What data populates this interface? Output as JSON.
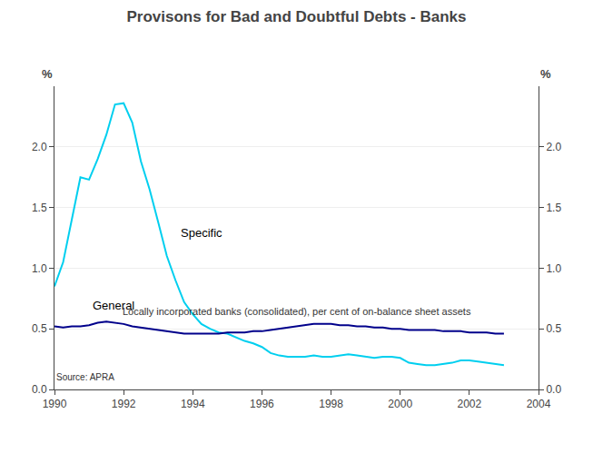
{
  "chart_data": {
    "type": "line",
    "title": "Provisons for Bad and Doubtful Debts - Banks",
    "subtitle": "Locally incorporated banks (consolidated), per cent of on-balance sheet assets",
    "source": "Source: APRA",
    "ylabel": "%",
    "y2label": "%",
    "xlim": [
      1990,
      2004
    ],
    "xticks": [
      1990,
      1992,
      1994,
      1996,
      1998,
      2000,
      2002,
      2004
    ],
    "ylim": [
      0.0,
      2.5
    ],
    "yticks": [
      {
        "value": 0.0,
        "label": "0.0"
      },
      0.5,
      {
        "value": 1.0,
        "label": "1.0"
      },
      1.5,
      {
        "value": 2.0,
        "label": "2.0"
      }
    ],
    "y2lim": [
      0.0,
      2.5
    ],
    "y2ticks": [
      {
        "value": 0.0,
        "label": "0.0"
      },
      0.5,
      {
        "value": 1.0,
        "label": "1.0"
      },
      1.5,
      {
        "value": 2.0,
        "label": "2.0"
      }
    ],
    "grid": true,
    "x": [
      1990.0,
      1990.25,
      1990.5,
      1990.75,
      1991.0,
      1991.25,
      1991.5,
      1991.75,
      1992.0,
      1992.25,
      1992.5,
      1992.75,
      1993.0,
      1993.25,
      1993.5,
      1993.75,
      1994.0,
      1994.25,
      1994.5,
      1994.75,
      1995.0,
      1995.25,
      1995.5,
      1995.75,
      1996.0,
      1996.25,
      1996.5,
      1996.75,
      1997.0,
      1997.25,
      1997.5,
      1997.75,
      1998.0,
      1998.25,
      1998.5,
      1998.75,
      1999.0,
      1999.25,
      1999.5,
      1999.75,
      2000.0,
      2000.25,
      2000.5,
      2000.75,
      2001.0,
      2001.25,
      2001.5,
      2001.75,
      2002.0,
      2002.25,
      2002.5,
      2002.75,
      2003.0
    ],
    "series": [
      {
        "name": "Specific",
        "color": "#00CFEF",
        "values": [
          0.85,
          1.05,
          1.4,
          1.75,
          1.73,
          1.9,
          2.1,
          2.35,
          2.36,
          2.2,
          1.88,
          1.65,
          1.38,
          1.1,
          0.9,
          0.72,
          0.62,
          0.54,
          0.5,
          0.47,
          0.46,
          0.43,
          0.4,
          0.38,
          0.35,
          0.3,
          0.28,
          0.27,
          0.27,
          0.27,
          0.28,
          0.27,
          0.27,
          0.28,
          0.29,
          0.28,
          0.27,
          0.26,
          0.27,
          0.27,
          0.26,
          0.22,
          0.21,
          0.2,
          0.2,
          0.21,
          0.22,
          0.24,
          0.24,
          0.23,
          0.22,
          0.21,
          0.2
        ]
      },
      {
        "name": "General",
        "color": "#00008B",
        "values": [
          0.52,
          0.51,
          0.52,
          0.52,
          0.53,
          0.55,
          0.56,
          0.55,
          0.54,
          0.52,
          0.51,
          0.5,
          0.49,
          0.48,
          0.47,
          0.46,
          0.46,
          0.46,
          0.46,
          0.46,
          0.47,
          0.47,
          0.47,
          0.48,
          0.48,
          0.49,
          0.5,
          0.51,
          0.52,
          0.53,
          0.54,
          0.54,
          0.54,
          0.53,
          0.53,
          0.52,
          0.52,
          0.51,
          0.51,
          0.5,
          0.5,
          0.49,
          0.49,
          0.49,
          0.49,
          0.48,
          0.48,
          0.48,
          0.47,
          0.47,
          0.47,
          0.46,
          0.46
        ]
      }
    ],
    "annotations": [
      {
        "text": "Specific",
        "x": 1993.6,
        "y": 1.22
      },
      {
        "text": "General",
        "x": 1991.05,
        "y": 0.62
      }
    ]
  }
}
